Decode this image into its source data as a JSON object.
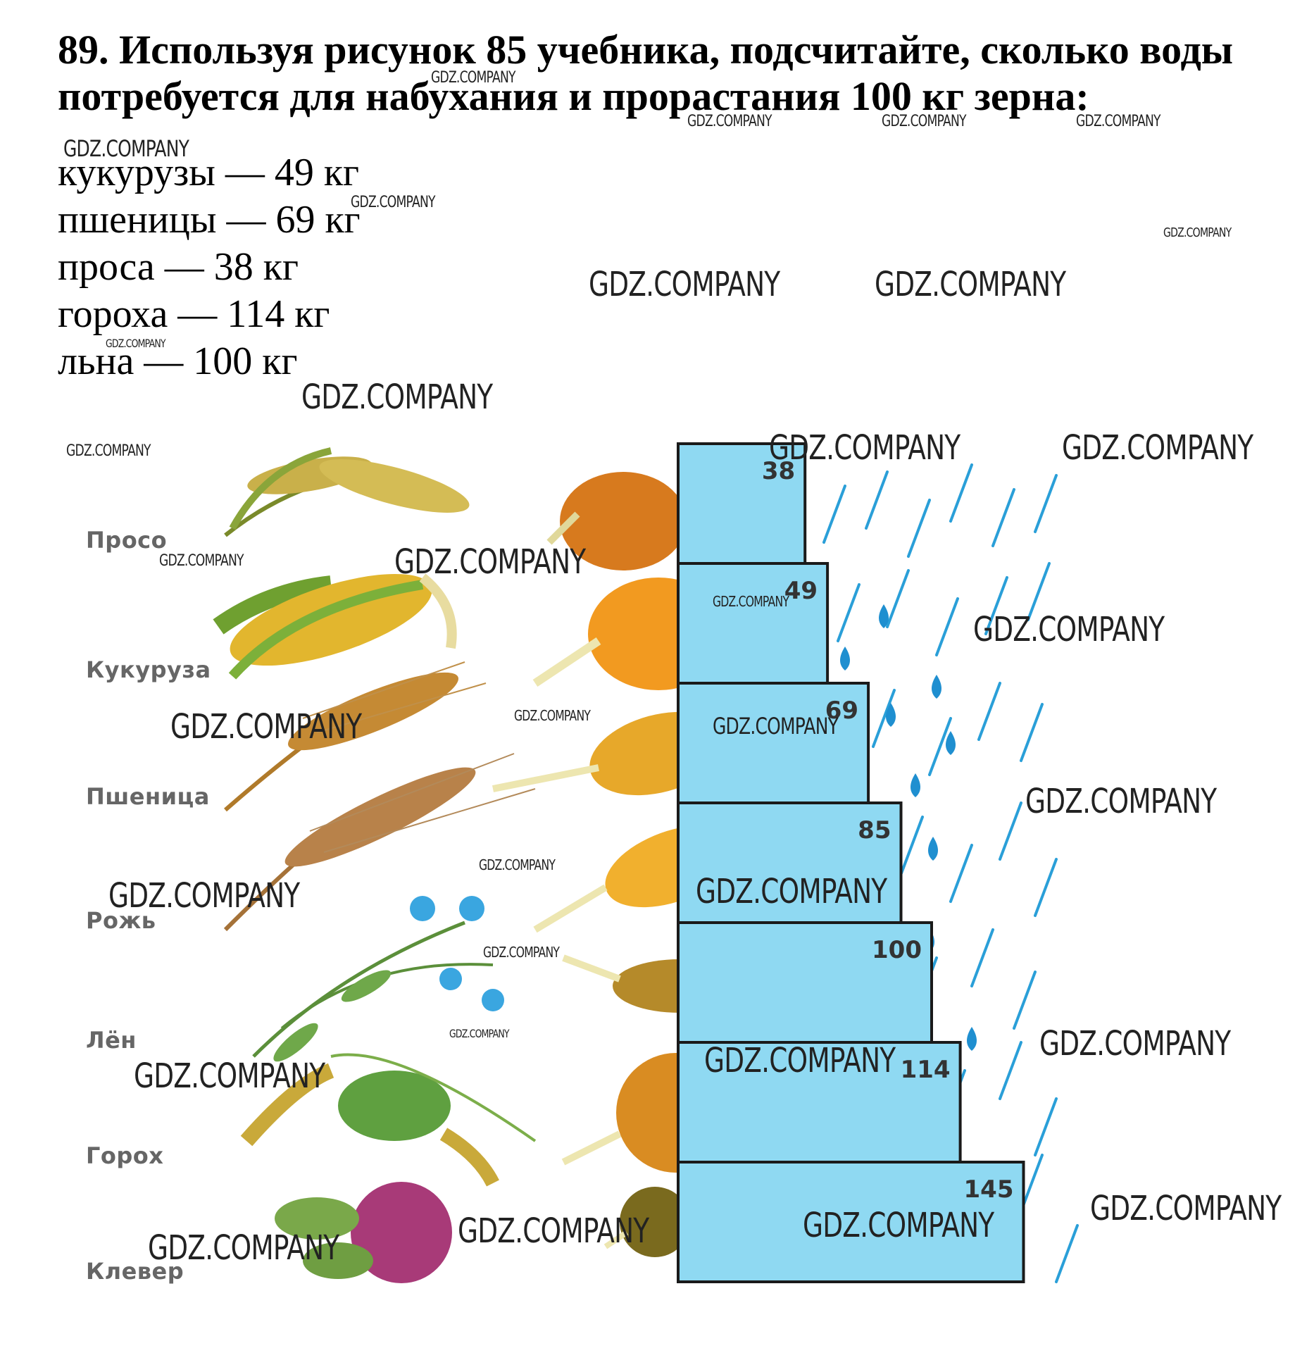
{
  "task": {
    "title": "89. Используя рисунок 85 учебника, подсчитайте, сколько воды потребуется для набухания и прорастания 100 кг зерна:"
  },
  "answers": [
    "кукурузы — 49 кг",
    "пшеницы — 69 кг",
    "проса — 38 кг",
    "гороха — 114 кг",
    "льна — 100 кг"
  ],
  "watermark": "GDZ.COMPANY",
  "figure": {
    "crops": [
      "Просо",
      "Кукуруза",
      "Пшеница",
      "Рожь",
      "Лён",
      "Горох",
      "Клевер"
    ],
    "water_values": [
      38,
      49,
      69,
      85,
      100,
      114,
      145
    ],
    "colors": {
      "bar_fill": "#8fd9f2",
      "bar_stroke": "#1a1a1a",
      "rain": "#2a9fd8",
      "drop": "#1f8fd0"
    }
  }
}
